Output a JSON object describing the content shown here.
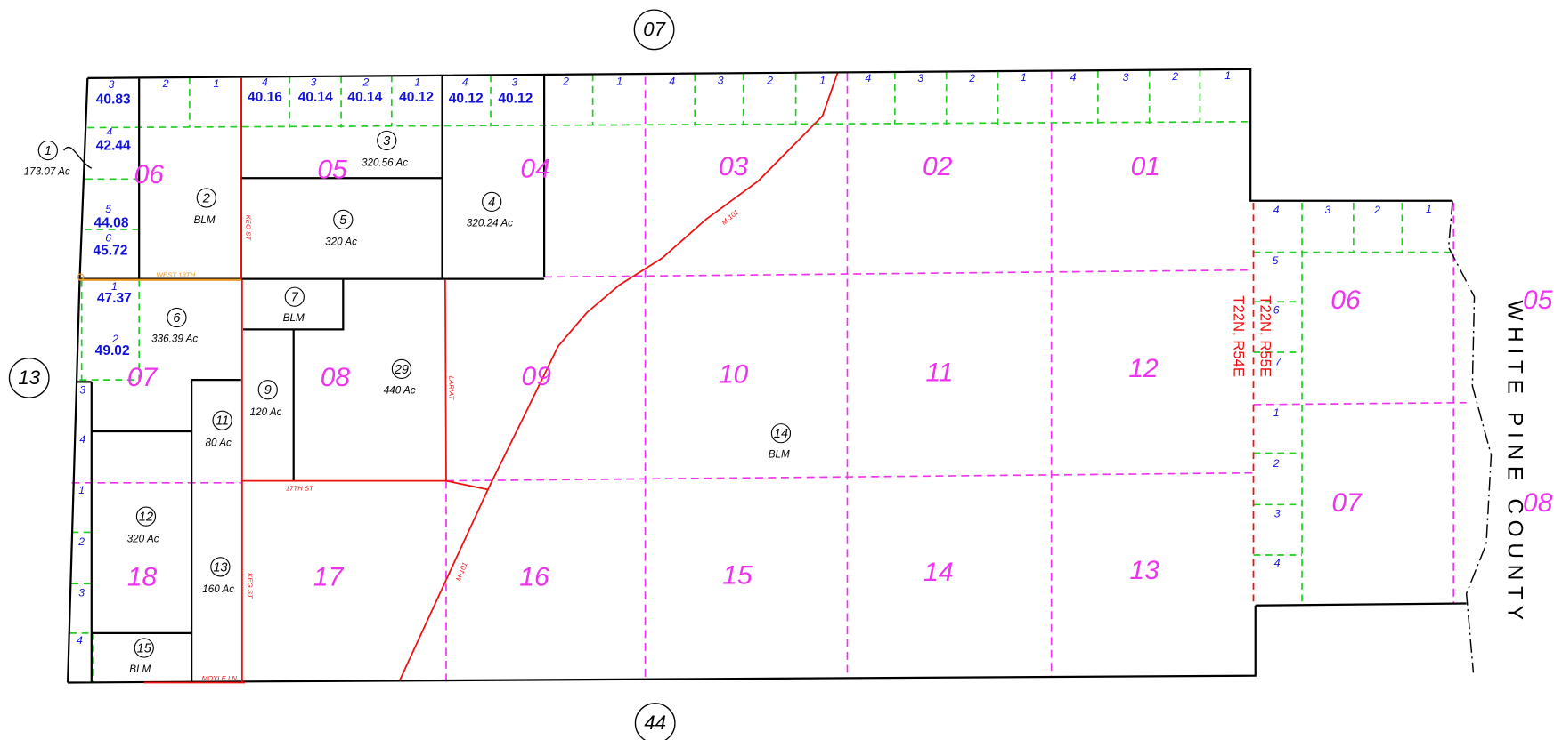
{
  "adjacent_parcels": [
    "07",
    "13",
    "44"
  ],
  "sections": [
    "06",
    "05",
    "04",
    "03",
    "02",
    "01",
    "07",
    "08",
    "09",
    "10",
    "11",
    "12",
    "06",
    "07",
    "18",
    "17",
    "16",
    "15",
    "14",
    "13",
    "05",
    "08"
  ],
  "parcels": [
    {
      "number": "1",
      "area": "173.07 Ac"
    },
    {
      "number": "2",
      "area": "BLM"
    },
    {
      "number": "3",
      "area": "320.56 Ac"
    },
    {
      "number": "4",
      "area": "320.24 Ac"
    },
    {
      "number": "5",
      "area": "320 Ac"
    },
    {
      "number": "7",
      "area": "BLM"
    },
    {
      "number": "6",
      "area": "336.39 Ac"
    },
    {
      "number": "29",
      "area": "440 Ac"
    },
    {
      "number": "9",
      "area": "120 Ac"
    },
    {
      "number": "11",
      "area": "80 Ac"
    },
    {
      "number": "14",
      "area": "BLM"
    },
    {
      "number": "12",
      "area": "320 Ac"
    },
    {
      "number": "13",
      "area": "160 Ac"
    },
    {
      "number": "15",
      "area": "BLM"
    }
  ],
  "lot_acreages": [
    "40.83",
    "42.44",
    "44.08",
    "45.72",
    "47.37",
    "49.02",
    "40.16",
    "40.14",
    "40.14",
    "40.12",
    "40.12",
    "40.12"
  ],
  "lot_numbers": [
    "3",
    "2",
    "1",
    "4",
    "3",
    "2",
    "1",
    "4",
    "3",
    "2",
    "1",
    "4",
    "3",
    "2",
    "1",
    "4",
    "3",
    "2",
    "1",
    "4",
    "3",
    "2",
    "1",
    "4",
    "5",
    "6",
    "1",
    "2",
    "3",
    "4",
    "1",
    "2",
    "3",
    "4",
    "4",
    "3",
    "2",
    "1",
    "5",
    "6",
    "7",
    "1",
    "2",
    "3",
    "4"
  ],
  "road_labels": [
    "WEST 18TH",
    "KEG ST",
    "LARIAT",
    "17TH ST",
    "KEG ST",
    "MOYLE LN",
    "M-101",
    "M-101"
  ],
  "township_lines": [
    "T22N, R55E",
    "T22N, R54E"
  ],
  "county": "WHITE PINE COUNTY"
}
